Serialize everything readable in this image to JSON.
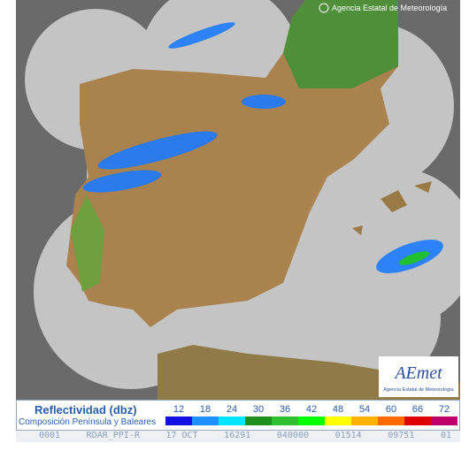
{
  "header": {
    "copyright": "Agencia Estatal de Meteorología"
  },
  "logo": {
    "name": "AEmet",
    "subtitle": "Agencia Estatal de Meteorología"
  },
  "legend": {
    "title": "Reflectividad (dbz)",
    "subtitle": "Composición Península y Baleares",
    "items": [
      {
        "label": 12,
        "color": "#1010e0"
      },
      {
        "label": 18,
        "color": "#1e90ff"
      },
      {
        "label": 24,
        "color": "#00e5ff"
      },
      {
        "label": 30,
        "color": "#1f8f1f"
      },
      {
        "label": 36,
        "color": "#2fc02f"
      },
      {
        "label": 42,
        "color": "#00ff00"
      },
      {
        "label": 48,
        "color": "#ffff00"
      },
      {
        "label": 54,
        "color": "#ffb000"
      },
      {
        "label": 60,
        "color": "#ff6a00"
      },
      {
        "label": 66,
        "color": "#e00000"
      },
      {
        "label": 72,
        "color": "#c0006a"
      }
    ]
  },
  "status_bar": {
    "fields": [
      "0001",
      "RDAR_PPI-R",
      "17 OCT",
      "16291",
      "040000",
      "01514",
      "09751",
      "01"
    ]
  }
}
